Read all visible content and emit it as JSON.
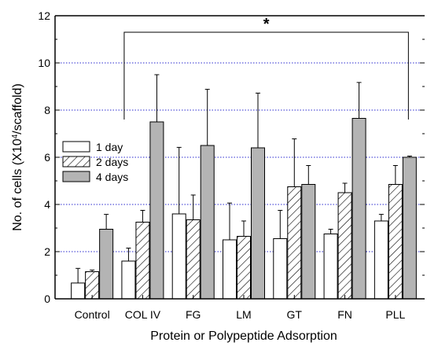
{
  "chart_data": {
    "type": "bar",
    "categories": [
      "Control",
      "COL IV",
      "FG",
      "LM",
      "GT",
      "FN",
      "PLL"
    ],
    "series": [
      {
        "name": "1 day",
        "values": [
          0.67,
          1.6,
          3.6,
          2.5,
          2.55,
          2.75,
          3.3
        ],
        "errors": [
          0.62,
          0.55,
          2.82,
          1.56,
          1.2,
          0.2,
          0.28
        ],
        "fill": "#ffffff",
        "pattern": "none"
      },
      {
        "name": "2 days",
        "values": [
          1.15,
          3.25,
          3.35,
          2.65,
          4.75,
          4.5,
          4.85
        ],
        "errors": [
          0.07,
          0.5,
          1.05,
          0.65,
          2.03,
          0.4,
          0.8
        ],
        "fill": "#ffffff",
        "pattern": "hatch"
      },
      {
        "name": "4 days",
        "values": [
          2.95,
          7.5,
          6.5,
          6.4,
          4.85,
          7.65,
          6.0
        ],
        "errors": [
          0.63,
          2.0,
          2.38,
          2.32,
          0.8,
          1.52,
          0.05
        ],
        "fill": "#b4b4b4",
        "pattern": "none"
      }
    ],
    "xlabel": "Protein or Polypeptide Adsorption",
    "ylabel_prefix": "No. of cells (X10",
    "ylabel_exp": "4",
    "ylabel_suffix": "/scaffold)",
    "ylim": [
      0,
      12
    ],
    "yticks": [
      "0",
      "2",
      "4",
      "6",
      "8",
      "10",
      "12"
    ],
    "grid": {
      "on": true,
      "values": [
        2,
        4,
        6,
        8,
        10
      ],
      "style": "dotted",
      "color": "#2a2acf"
    },
    "legend": {
      "placement": "left"
    },
    "annotation": {
      "text": "*",
      "from": "COL IV",
      "to": "PLL",
      "at_value": 11.3,
      "drop_to": 7.6
    }
  }
}
